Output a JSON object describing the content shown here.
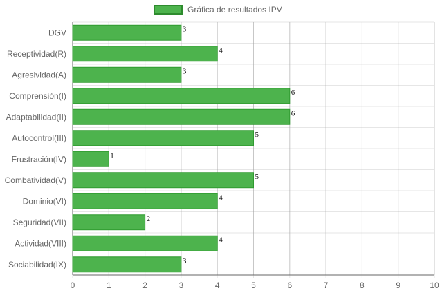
{
  "chart_data": {
    "type": "bar",
    "orientation": "horizontal",
    "categories": [
      "DGV",
      "Receptividad(R)",
      "Agresividad(A)",
      "Comprensión(I)",
      "Adaptabilidad(II)",
      "Autocontrol(III)",
      "Frustración(IV)",
      "Combatividad(V)",
      "Dominio(VI)",
      "Seguridad(VII)",
      "Actividad(VIII)",
      "Sociabilidad(IX)"
    ],
    "series": [
      {
        "name": "Gráfica de resultados IPV",
        "values": [
          3,
          4,
          3,
          6,
          6,
          5,
          1,
          5,
          4,
          2,
          4,
          3
        ]
      }
    ],
    "xlim": [
      0,
      10
    ],
    "xticks": [
      0,
      1,
      2,
      3,
      4,
      5,
      6,
      7,
      8,
      9,
      10
    ],
    "legend": "top-center",
    "grid": true,
    "data_labels": true,
    "colors": {
      "bar_fill": "#4db34d",
      "bar_border": "#2f9a2f",
      "grid": "#e6e6e6",
      "grid_major": "#999999",
      "axis": "#666666"
    }
  }
}
